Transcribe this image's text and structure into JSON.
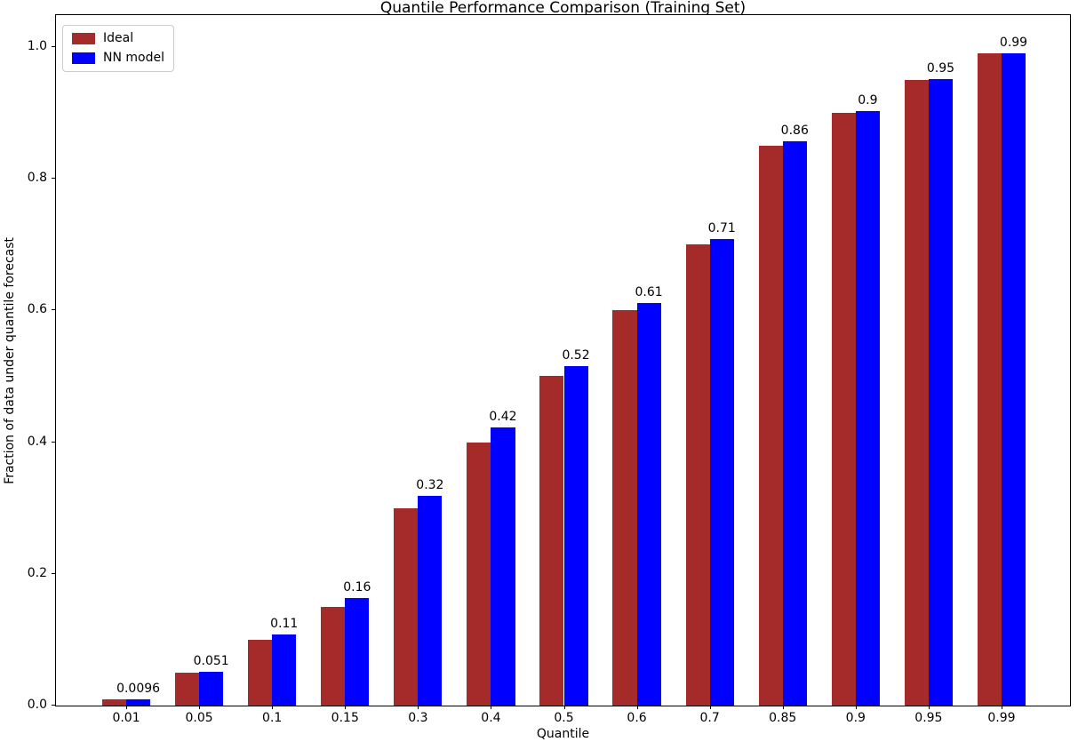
{
  "chart_data": {
    "type": "bar",
    "title": "Quantile Performance Comparison (Training Set)",
    "xlabel": "Quantile",
    "ylabel": "Fraction of data under quantile forecast",
    "categories": [
      "0.01",
      "0.05",
      "0.1",
      "0.15",
      "0.3",
      "0.4",
      "0.5",
      "0.6",
      "0.7",
      "0.85",
      "0.9",
      "0.95",
      "0.99"
    ],
    "series": [
      {
        "name": "Ideal",
        "color": "#A52A2A",
        "values": [
          0.01,
          0.05,
          0.1,
          0.15,
          0.3,
          0.4,
          0.5,
          0.6,
          0.7,
          0.85,
          0.9,
          0.95,
          0.99
        ]
      },
      {
        "name": "NN model",
        "color": "#0000FF",
        "values": [
          0.0096,
          0.051,
          0.108,
          0.163,
          0.318,
          0.422,
          0.516,
          0.611,
          0.709,
          0.857,
          0.903,
          0.951,
          0.99
        ],
        "bar_labels": [
          "0.0096",
          "0.051",
          "0.11",
          "0.16",
          "0.32",
          "0.42",
          "0.52",
          "0.61",
          "0.71",
          "0.86",
          "0.9",
          "0.95",
          "0.99"
        ]
      }
    ],
    "ylim": [
      0,
      1.051
    ],
    "yticks": [
      "0.0",
      "0.2",
      "0.4",
      "0.6",
      "0.8",
      "1.0"
    ],
    "grid": false,
    "legend_position": "upper left",
    "axis_color": "#000000",
    "legend_border_color": "#cccccc"
  }
}
